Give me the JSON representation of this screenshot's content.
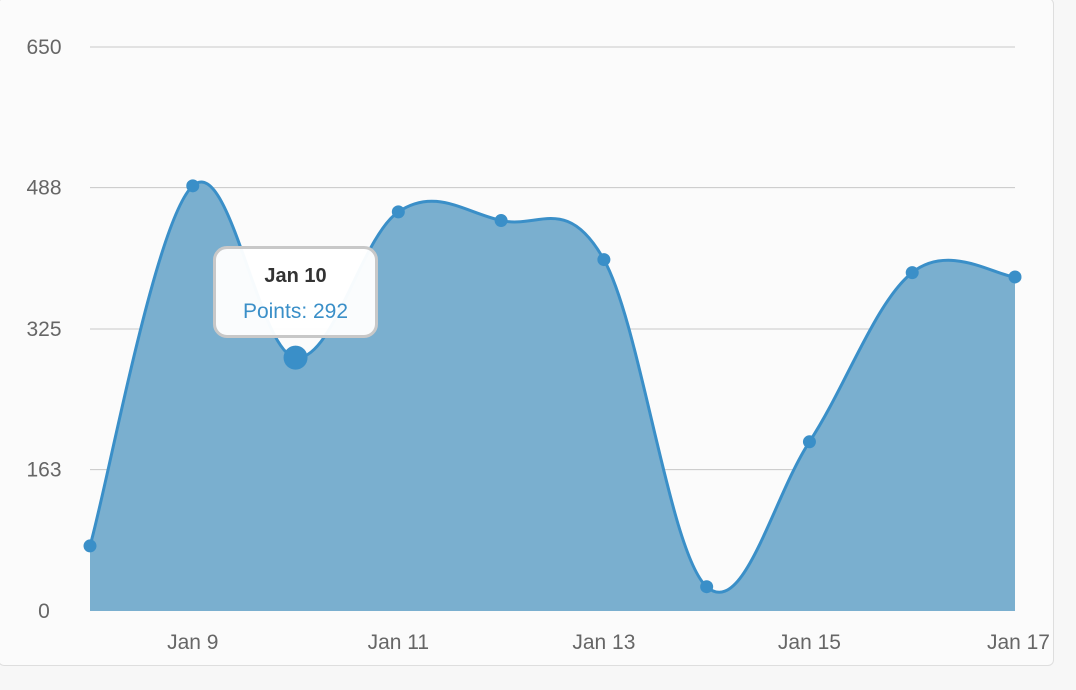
{
  "chart_data": {
    "type": "area",
    "x": [
      "Jan 8",
      "Jan 9",
      "Jan 10",
      "Jan 11",
      "Jan 12",
      "Jan 13",
      "Jan 14",
      "Jan 15",
      "Jan 16",
      "Jan 17"
    ],
    "values": [
      75,
      490,
      292,
      460,
      450,
      405,
      28,
      195,
      390,
      385
    ],
    "x_tick_labels": [
      "Jan 9",
      "Jan 11",
      "Jan 13",
      "Jan 15",
      "Jan 17"
    ],
    "y_ticks": [
      "650",
      "488",
      "325",
      "163",
      "0"
    ],
    "ylim": [
      0,
      650
    ],
    "grid": true,
    "legend": "none",
    "colors": {
      "line": "#3a8fc8",
      "fill": "#7aafcf",
      "grid": "#c8c8c8"
    },
    "tooltip": {
      "title": "Jan 10",
      "value_text": "Points: 292"
    }
  }
}
